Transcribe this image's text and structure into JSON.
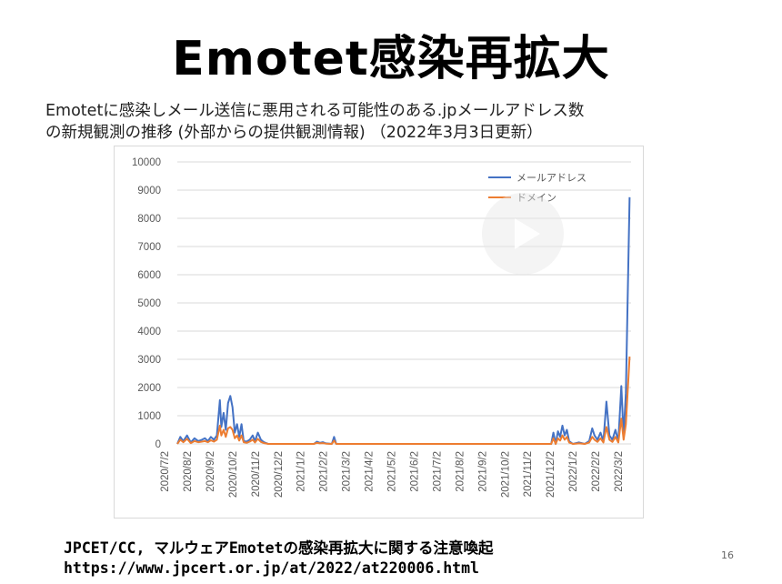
{
  "slide": {
    "title": "Emotet感染再拡大",
    "subtitle_line1": "Emotetに感染しメール送信に悪用される可能性のある.jpメールアドレス数",
    "subtitle_line2": "の新規観測の推移 (外部からの提供観測情報) （2022年3月3日更新）",
    "footer_line1": "JPCET/CC, マルウェアEmotetの感染再拡大に関する注意喚起",
    "footer_line2": "https://www.jpcert.or.jp/at/2022/at220006.html",
    "page_number": "16"
  },
  "colors": {
    "mail": "#4472c4",
    "domain": "#ed7d31",
    "grid": "#d9d9d9",
    "axis_text": "#595959"
  },
  "chart_data": {
    "type": "line",
    "title": "",
    "xlabel": "",
    "ylabel": "",
    "ylim": [
      0,
      10000
    ],
    "yticks": [
      0,
      1000,
      2000,
      3000,
      4000,
      5000,
      6000,
      7000,
      8000,
      9000,
      10000
    ],
    "xlim": [
      "2020-07-02",
      "2022-03-02"
    ],
    "x_tick_labels": [
      "2020/7/2",
      "2020/8/2",
      "2020/9/2",
      "2020/10/2",
      "2020/11/2",
      "2020/12/2",
      "2021/1/2",
      "2021/2/2",
      "2021/3/2",
      "2021/4/2",
      "2021/5/2",
      "2021/6/2",
      "2021/7/2",
      "2021/8/2",
      "2021/9/2",
      "2021/10/2",
      "2021/11/2",
      "2021/12/2",
      "2022/1/2",
      "2022/2/2",
      "2022/3/2"
    ],
    "grid": true,
    "legend_position": "top-right",
    "series": [
      {
        "name": "メールアドレス",
        "color": "#4472c4",
        "points": [
          [
            "2020-07-02",
            0
          ],
          [
            "2020-07-06",
            250
          ],
          [
            "2020-07-10",
            100
          ],
          [
            "2020-07-15",
            300
          ],
          [
            "2020-07-20",
            50
          ],
          [
            "2020-07-25",
            200
          ],
          [
            "2020-07-30",
            100
          ],
          [
            "2020-08-04",
            150
          ],
          [
            "2020-08-08",
            200
          ],
          [
            "2020-08-12",
            100
          ],
          [
            "2020-08-16",
            250
          ],
          [
            "2020-08-20",
            150
          ],
          [
            "2020-08-24",
            300
          ],
          [
            "2020-08-28",
            1550
          ],
          [
            "2020-08-30",
            600
          ],
          [
            "2020-09-02",
            1100
          ],
          [
            "2020-09-05",
            500
          ],
          [
            "2020-09-08",
            1450
          ],
          [
            "2020-09-11",
            1700
          ],
          [
            "2020-09-14",
            1300
          ],
          [
            "2020-09-17",
            400
          ],
          [
            "2020-09-20",
            700
          ],
          [
            "2020-09-23",
            250
          ],
          [
            "2020-09-26",
            700
          ],
          [
            "2020-09-29",
            100
          ],
          [
            "2020-10-03",
            80
          ],
          [
            "2020-10-07",
            150
          ],
          [
            "2020-10-11",
            300
          ],
          [
            "2020-10-14",
            100
          ],
          [
            "2020-10-18",
            400
          ],
          [
            "2020-10-22",
            150
          ],
          [
            "2020-10-26",
            60
          ],
          [
            "2020-11-01",
            0
          ],
          [
            "2021-01-01",
            0
          ],
          [
            "2021-01-05",
            80
          ],
          [
            "2021-01-09",
            40
          ],
          [
            "2021-01-13",
            60
          ],
          [
            "2021-01-17",
            20
          ],
          [
            "2021-01-25",
            0
          ],
          [
            "2021-01-28",
            250
          ],
          [
            "2021-01-31",
            0
          ],
          [
            "2021-11-15",
            0
          ],
          [
            "2021-11-18",
            400
          ],
          [
            "2021-11-21",
            0
          ],
          [
            "2021-11-24",
            450
          ],
          [
            "2021-11-27",
            250
          ],
          [
            "2021-11-30",
            650
          ],
          [
            "2021-12-03",
            300
          ],
          [
            "2021-12-06",
            500
          ],
          [
            "2021-12-09",
            100
          ],
          [
            "2021-12-14",
            0
          ],
          [
            "2021-12-22",
            50
          ],
          [
            "2021-12-30",
            0
          ],
          [
            "2022-01-05",
            100
          ],
          [
            "2022-01-09",
            550
          ],
          [
            "2022-01-12",
            300
          ],
          [
            "2022-01-16",
            150
          ],
          [
            "2022-01-20",
            400
          ],
          [
            "2022-01-24",
            100
          ],
          [
            "2022-01-28",
            1500
          ],
          [
            "2022-02-01",
            300
          ],
          [
            "2022-02-05",
            150
          ],
          [
            "2022-02-09",
            500
          ],
          [
            "2022-02-13",
            100
          ],
          [
            "2022-02-17",
            2050
          ],
          [
            "2022-02-20",
            300
          ],
          [
            "2022-02-23",
            1800
          ],
          [
            "2022-02-28",
            8750
          ]
        ]
      },
      {
        "name": "ドメイン",
        "color": "#ed7d31",
        "points": [
          [
            "2020-07-02",
            0
          ],
          [
            "2020-07-06",
            150
          ],
          [
            "2020-07-10",
            60
          ],
          [
            "2020-07-15",
            180
          ],
          [
            "2020-07-20",
            30
          ],
          [
            "2020-07-25",
            100
          ],
          [
            "2020-07-30",
            60
          ],
          [
            "2020-08-04",
            80
          ],
          [
            "2020-08-08",
            100
          ],
          [
            "2020-08-12",
            60
          ],
          [
            "2020-08-16",
            130
          ],
          [
            "2020-08-20",
            80
          ],
          [
            "2020-08-24",
            150
          ],
          [
            "2020-08-28",
            650
          ],
          [
            "2020-08-30",
            300
          ],
          [
            "2020-09-02",
            500
          ],
          [
            "2020-09-05",
            250
          ],
          [
            "2020-09-08",
            550
          ],
          [
            "2020-09-11",
            600
          ],
          [
            "2020-09-14",
            500
          ],
          [
            "2020-09-17",
            200
          ],
          [
            "2020-09-20",
            300
          ],
          [
            "2020-09-23",
            120
          ],
          [
            "2020-09-26",
            300
          ],
          [
            "2020-09-29",
            60
          ],
          [
            "2020-10-03",
            40
          ],
          [
            "2020-10-07",
            80
          ],
          [
            "2020-10-11",
            150
          ],
          [
            "2020-10-14",
            50
          ],
          [
            "2020-10-18",
            180
          ],
          [
            "2020-10-22",
            70
          ],
          [
            "2020-10-26",
            30
          ],
          [
            "2020-11-01",
            0
          ],
          [
            "2021-01-01",
            0
          ],
          [
            "2021-01-05",
            40
          ],
          [
            "2021-01-09",
            20
          ],
          [
            "2021-01-13",
            30
          ],
          [
            "2021-01-17",
            10
          ],
          [
            "2021-01-25",
            0
          ],
          [
            "2021-01-28",
            120
          ],
          [
            "2021-01-31",
            0
          ],
          [
            "2021-11-15",
            0
          ],
          [
            "2021-11-18",
            200
          ],
          [
            "2021-11-21",
            0
          ],
          [
            "2021-11-24",
            200
          ],
          [
            "2021-11-27",
            120
          ],
          [
            "2021-11-30",
            300
          ],
          [
            "2021-12-03",
            150
          ],
          [
            "2021-12-06",
            250
          ],
          [
            "2021-12-09",
            50
          ],
          [
            "2021-12-14",
            0
          ],
          [
            "2021-12-22",
            20
          ],
          [
            "2021-12-30",
            0
          ],
          [
            "2022-01-05",
            50
          ],
          [
            "2022-01-09",
            250
          ],
          [
            "2022-01-12",
            150
          ],
          [
            "2022-01-16",
            70
          ],
          [
            "2022-01-20",
            200
          ],
          [
            "2022-01-24",
            50
          ],
          [
            "2022-01-28",
            600
          ],
          [
            "2022-02-01",
            150
          ],
          [
            "2022-02-05",
            70
          ],
          [
            "2022-02-09",
            250
          ],
          [
            "2022-02-13",
            50
          ],
          [
            "2022-02-17",
            900
          ],
          [
            "2022-02-20",
            150
          ],
          [
            "2022-02-23",
            700
          ],
          [
            "2022-02-28",
            3100
          ]
        ]
      }
    ]
  }
}
